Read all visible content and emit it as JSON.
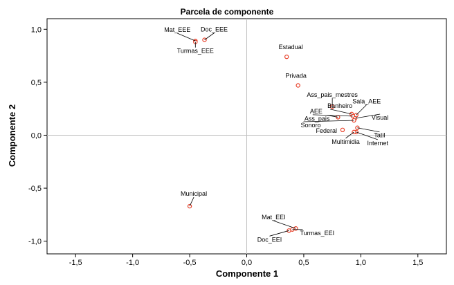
{
  "chart_data": {
    "type": "scatter",
    "title": "Parcela de componente",
    "xlabel": "Componente 1",
    "ylabel": "Componente 2",
    "xlim": [
      -1.75,
      1.75
    ],
    "ylim": [
      -1.12,
      1.1
    ],
    "xticks": [
      -1.5,
      -1.0,
      -0.5,
      0.0,
      0.5,
      1.0,
      1.5
    ],
    "xtick_labels": [
      "-1,5",
      "-1,0",
      "-0,5",
      "0,0",
      "0,5",
      "1,0",
      "1,5"
    ],
    "yticks": [
      1.0,
      0.5,
      0.0,
      -0.5,
      -1.0
    ],
    "ytick_labels": [
      "1,0",
      "0,5",
      "0,0",
      "-0,5",
      "-1,0"
    ],
    "grid": false,
    "reference_lines": [
      0,
      0
    ],
    "marker_color": "#e8412a",
    "points": [
      {
        "name": "Mat_EEE",
        "x": -0.45,
        "y": 0.89
      },
      {
        "name": "Doc_EEE",
        "x": -0.37,
        "y": 0.9
      },
      {
        "name": "Turmas_EEE",
        "x": -0.45,
        "y": 0.88
      },
      {
        "name": "Estadual",
        "x": 0.35,
        "y": 0.74
      },
      {
        "name": "Privada",
        "x": 0.45,
        "y": 0.47
      },
      {
        "name": "Ass_pais_mestres",
        "x": 0.75,
        "y": 0.27
      },
      {
        "name": "Banheiro",
        "x": 0.92,
        "y": 0.2
      },
      {
        "name": "Sala_AEE",
        "x": 0.96,
        "y": 0.19
      },
      {
        "name": "AEE",
        "x": 0.93,
        "y": 0.18
      },
      {
        "name": "Ass_pais",
        "x": 0.8,
        "y": 0.17
      },
      {
        "name": "Visual",
        "x": 0.95,
        "y": 0.16
      },
      {
        "name": "Sonoro",
        "x": 0.94,
        "y": 0.14
      },
      {
        "name": "Tatil",
        "x": 0.97,
        "y": 0.07
      },
      {
        "name": "Federal",
        "x": 0.84,
        "y": 0.05
      },
      {
        "name": "Internet",
        "x": 0.96,
        "y": 0.03
      },
      {
        "name": "Multimidia",
        "x": 0.94,
        "y": 0.03
      },
      {
        "name": "Municipal",
        "x": -0.5,
        "y": -0.67
      },
      {
        "name": "Mat_EEI",
        "x": 0.43,
        "y": -0.88
      },
      {
        "name": "Turmas_EEI",
        "x": 0.4,
        "y": -0.89
      },
      {
        "name": "Doc_EEI",
        "x": 0.37,
        "y": -0.9
      }
    ]
  }
}
